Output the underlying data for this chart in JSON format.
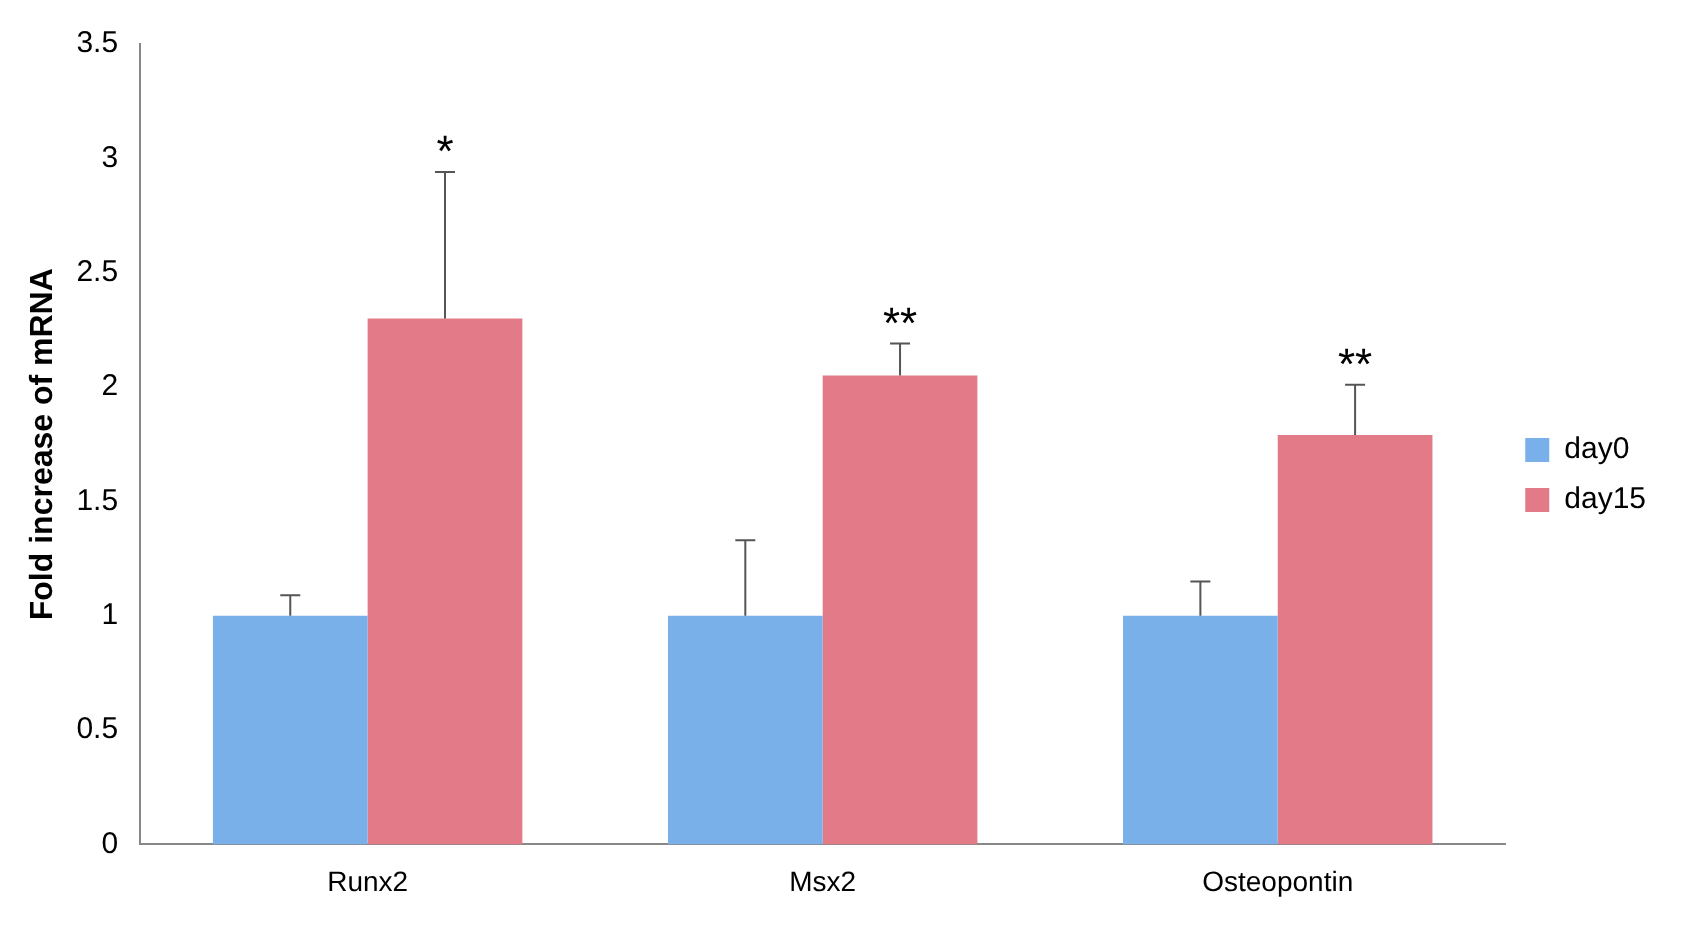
{
  "chart_data": {
    "type": "bar",
    "ylabel": "Fold increase of mRNA",
    "categories": [
      "Runx2",
      "Msx2",
      "Osteopontin"
    ],
    "series": [
      {
        "name": "day0",
        "color": "#7ab0ea",
        "values": [
          1,
          1,
          1
        ],
        "errors": [
          [
            1,
            1.09
          ],
          [
            1,
            1.33
          ],
          [
            1,
            1.15
          ]
        ]
      },
      {
        "name": "day15",
        "color": "#e27a88",
        "values": [
          2.3,
          2.05,
          1.79
        ],
        "errors": [
          [
            2.3,
            2.94
          ],
          [
            2.05,
            2.19
          ],
          [
            1.79,
            2.01
          ]
        ]
      }
    ],
    "ylim": [
      0,
      3.5
    ],
    "yticks": [
      0,
      0.5,
      1,
      1.5,
      2,
      2.5,
      3,
      3.5
    ],
    "grid": false,
    "legend": "right",
    "annotations": [
      "*",
      "**",
      "**"
    ]
  }
}
